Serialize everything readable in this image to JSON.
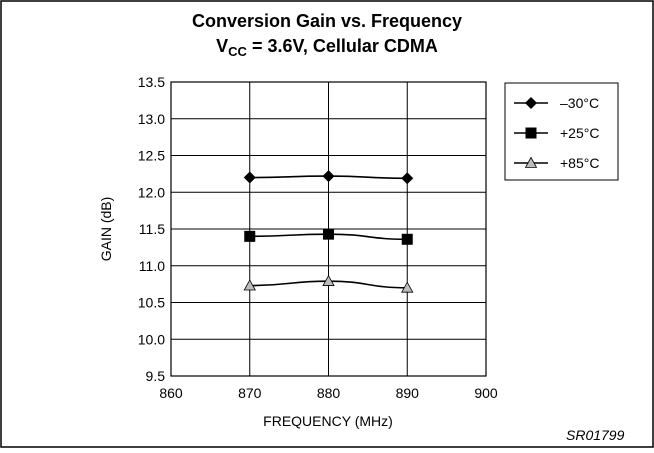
{
  "chart_data": {
    "type": "line",
    "title": "Conversion Gain vs. Frequency",
    "subtitle": {
      "prefix": "V",
      "subscript": "CC",
      "suffix": " = 3.6V, Cellular CDMA"
    },
    "xlabel": "FREQUENCY (MHz)",
    "ylabel": "GAIN (dB)",
    "xlim": [
      860,
      900
    ],
    "ylim": [
      9.5,
      13.5
    ],
    "x_ticks": [
      "860",
      "870",
      "880",
      "890",
      "900"
    ],
    "y_ticks": [
      "9.5",
      "10.0",
      "10.5",
      "11.0",
      "11.5",
      "12.0",
      "12.5",
      "13.0",
      "13.5"
    ],
    "x_tick_values": [
      860,
      870,
      880,
      890,
      900
    ],
    "y_tick_values": [
      9.5,
      10.0,
      10.5,
      11.0,
      11.5,
      12.0,
      12.5,
      13.0,
      13.5
    ],
    "grid": true,
    "legend_position": "top-right",
    "x": [
      870,
      880,
      890
    ],
    "series": [
      {
        "name": "–30°C",
        "marker": "diamond",
        "values": [
          12.2,
          12.22,
          12.19
        ]
      },
      {
        "name": "+25°C",
        "marker": "square",
        "values": [
          11.4,
          11.43,
          11.36
        ]
      },
      {
        "name": "+85°C",
        "marker": "triangle",
        "values": [
          10.73,
          10.79,
          10.7
        ]
      }
    ],
    "annotation": "SR01799"
  }
}
